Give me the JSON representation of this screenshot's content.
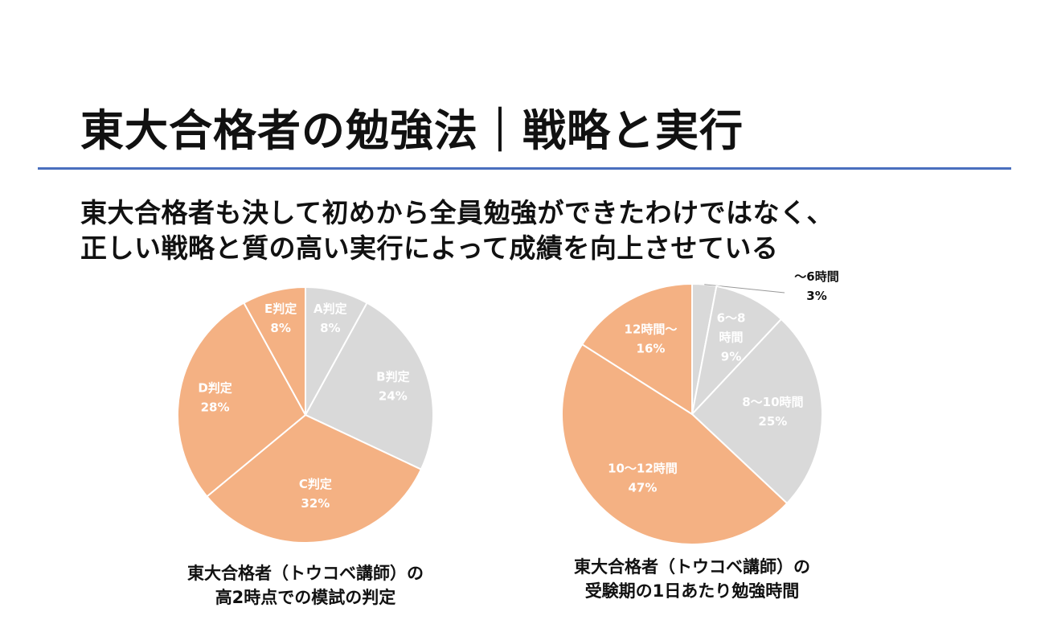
{
  "header": {
    "title": "東大合格者の勉強法｜戦略と実行",
    "subtitle_line1": "東大合格者も決して初めから全員勉強ができたわけではなく、",
    "subtitle_line2": "正しい戦略と質の高い実行によって成績を向上させている"
  },
  "colors": {
    "accent": "#4a6fbe",
    "gray_slice": "#d9d9d9",
    "orange_slice": "#f4b183",
    "label_white": "#ffffff",
    "label_dark": "#111111"
  },
  "chart_data": [
    {
      "type": "pie",
      "title": "東大合格者（トウコベ講師）の高2時点での模試の判定",
      "caption_line1": "東大合格者（トウコベ講師）の",
      "caption_line2": "高2時点での模試の判定",
      "slices": [
        {
          "name": "A判定",
          "value": 8,
          "pct_label": "8%",
          "color": "#d9d9d9"
        },
        {
          "name": "B判定",
          "value": 24,
          "pct_label": "24%",
          "color": "#d9d9d9"
        },
        {
          "name": "C判定",
          "value": 32,
          "pct_label": "32%",
          "color": "#f4b183"
        },
        {
          "name": "D判定",
          "value": 28,
          "pct_label": "28%",
          "color": "#f4b183"
        },
        {
          "name": "E判定",
          "value": 8,
          "pct_label": "8%",
          "color": "#f4b183"
        }
      ]
    },
    {
      "type": "pie",
      "title": "東大合格者（トウコベ講師）の受験期の1日あたり勉強時間",
      "caption_line1": "東大合格者（トウコベ講師）の",
      "caption_line2": "受験期の1日あたり勉強時間",
      "slices": [
        {
          "name": "〜6時間",
          "value": 3,
          "pct_label": "3%",
          "color": "#d9d9d9"
        },
        {
          "name": "6〜8時間",
          "value": 9,
          "pct_label": "9%",
          "color": "#d9d9d9"
        },
        {
          "name": "8〜10時間",
          "value": 25,
          "pct_label": "25%",
          "color": "#d9d9d9"
        },
        {
          "name": "10〜12時間",
          "value": 47,
          "pct_label": "47%",
          "color": "#f4b183"
        },
        {
          "name": "12時間〜",
          "value": 16,
          "pct_label": "16%",
          "color": "#f4b183"
        }
      ]
    }
  ]
}
